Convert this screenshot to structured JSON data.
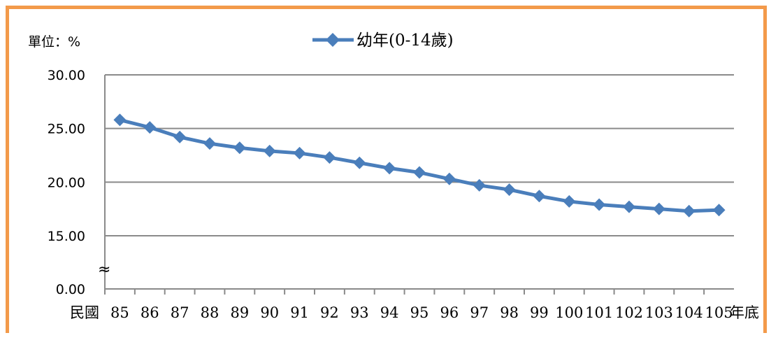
{
  "chart_data": {
    "type": "line",
    "unit_label": "單位：%",
    "x_prefix_label": "民國",
    "x_suffix_label": "年底",
    "categories": [
      "85",
      "86",
      "87",
      "88",
      "89",
      "90",
      "91",
      "92",
      "93",
      "94",
      "95",
      "96",
      "97",
      "98",
      "99",
      "100",
      "101",
      "102",
      "103",
      "104",
      "105"
    ],
    "series": [
      {
        "name": "幼年(0-14歲)",
        "color": "#4a7ebb",
        "values": [
          25.8,
          25.1,
          24.2,
          23.6,
          23.2,
          22.9,
          22.7,
          22.3,
          21.8,
          21.3,
          20.9,
          20.3,
          19.7,
          19.3,
          18.7,
          18.2,
          17.9,
          17.7,
          17.5,
          17.3,
          17.4
        ]
      }
    ],
    "y_ticks": [
      "30.00",
      "25.00",
      "20.00",
      "15.00",
      "0.00"
    ],
    "y_tick_values": [
      30,
      25,
      20,
      15,
      0
    ],
    "axis_break": "≈",
    "grid": true,
    "legend_position": "top-center"
  }
}
